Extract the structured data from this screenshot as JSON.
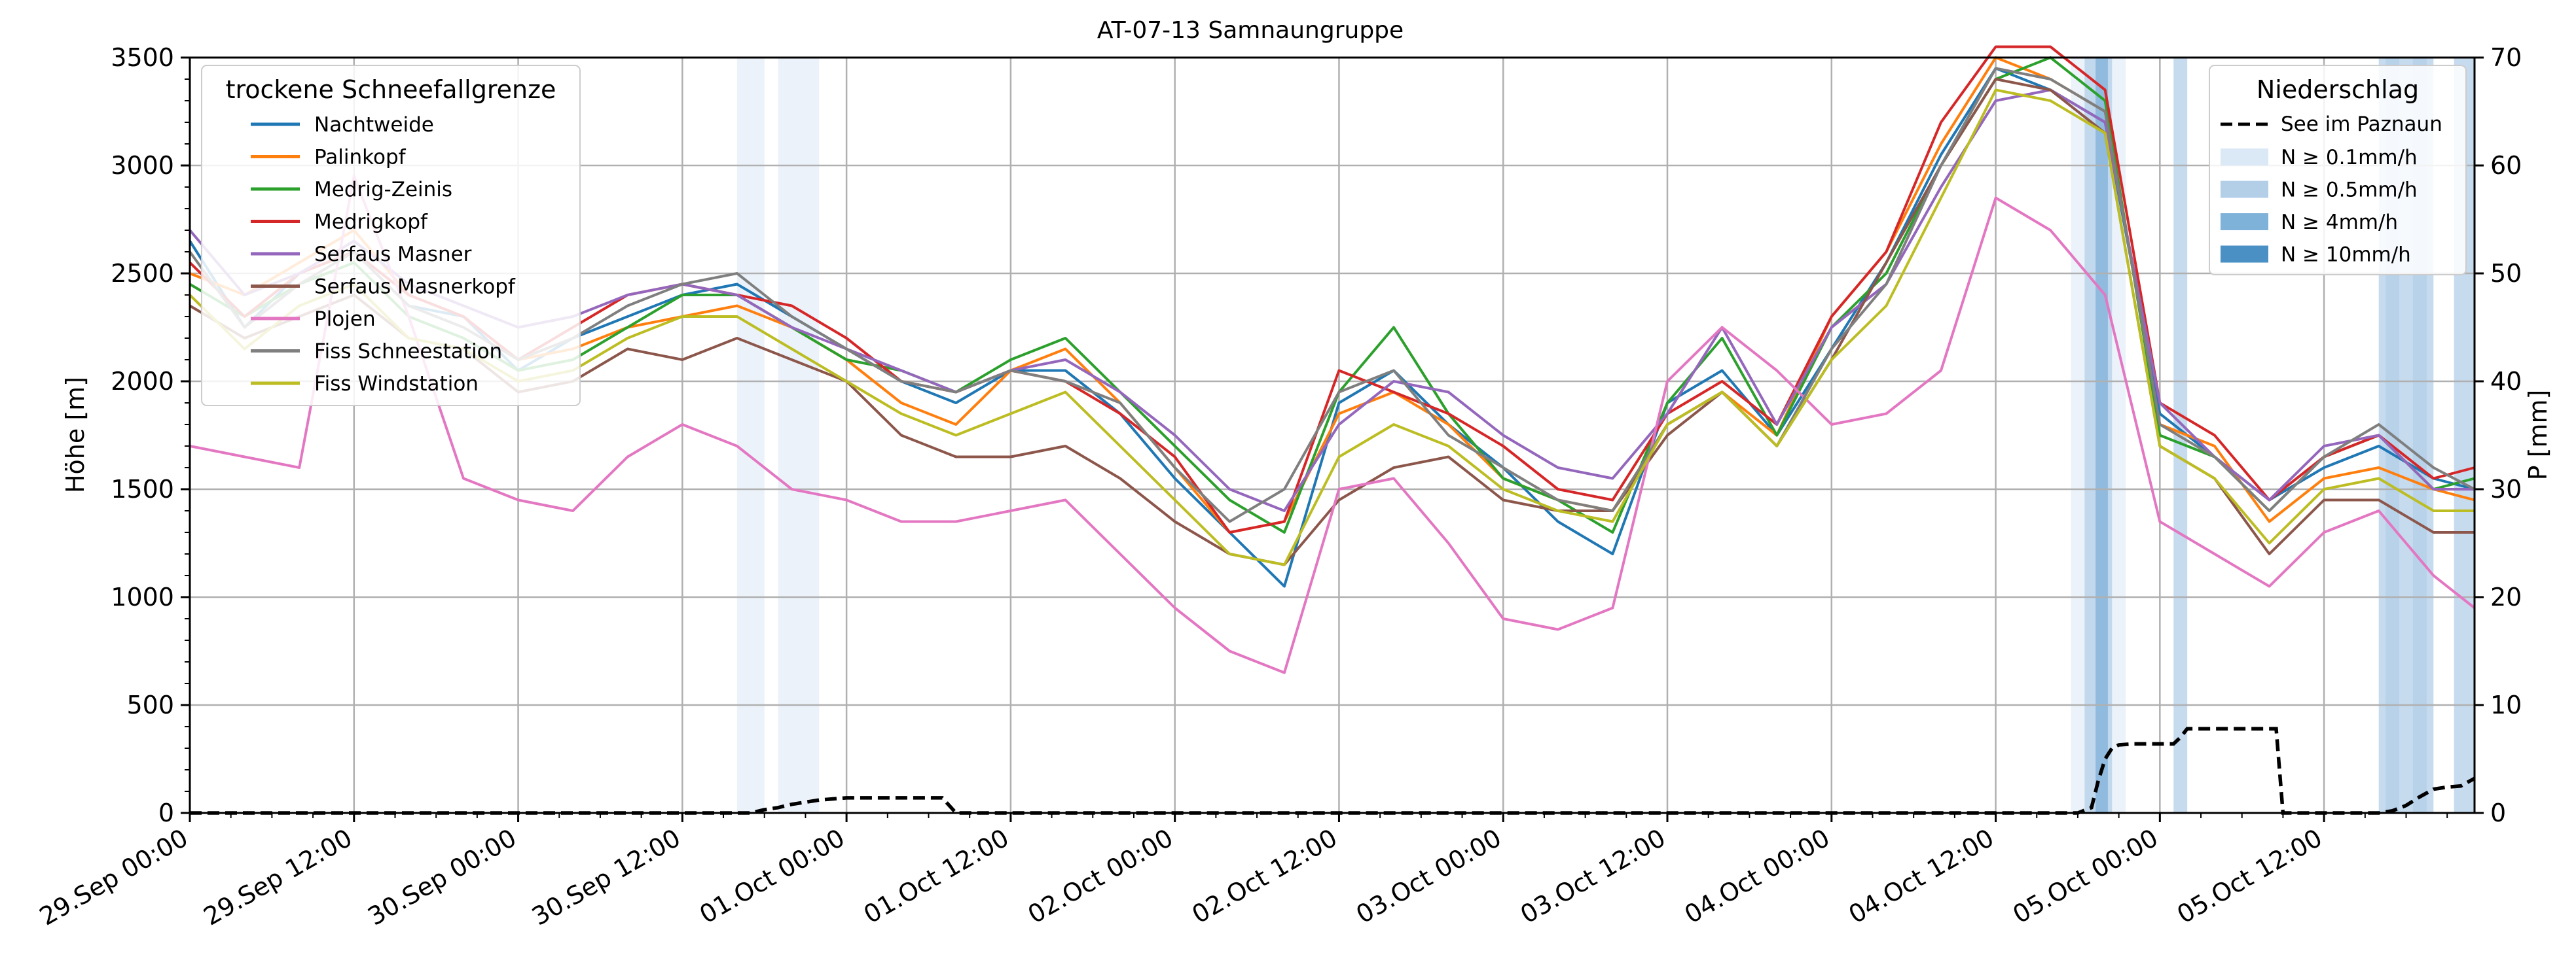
{
  "chart_data": {
    "type": "line",
    "title": "AT-07-13 Samnaungruppe",
    "ylabel": "Höhe [m]",
    "ylabel_right": "P [mm]",
    "ylim": [
      0,
      3500
    ],
    "ylim_right": [
      0,
      70
    ],
    "yticks": [
      0,
      500,
      1000,
      1500,
      2000,
      2500,
      3000,
      3500
    ],
    "yticks_right": [
      0,
      10,
      20,
      30,
      40,
      50,
      60,
      70
    ],
    "grid": true,
    "x_range_hours": [
      0,
      167
    ],
    "x_ticks": [
      {
        "hour": 0,
        "label": "29.Sep 00:00"
      },
      {
        "hour": 12,
        "label": "29.Sep 12:00"
      },
      {
        "hour": 24,
        "label": "30.Sep 00:00"
      },
      {
        "hour": 36,
        "label": "30.Sep 12:00"
      },
      {
        "hour": 48,
        "label": "01.Oct 00:00"
      },
      {
        "hour": 60,
        "label": "01.Oct 12:00"
      },
      {
        "hour": 72,
        "label": "02.Oct 00:00"
      },
      {
        "hour": 84,
        "label": "02.Oct 12:00"
      },
      {
        "hour": 96,
        "label": "03.Oct 00:00"
      },
      {
        "hour": 108,
        "label": "03.Oct 12:00"
      },
      {
        "hour": 120,
        "label": "04.Oct 00:00"
      },
      {
        "hour": 132,
        "label": "04.Oct 12:00"
      },
      {
        "hour": 144,
        "label": "05.Oct 00:00"
      },
      {
        "hour": 156,
        "label": "05.Oct 12:00"
      }
    ],
    "legend_left": {
      "title": "trockene Schneefallgrenze",
      "placement": "upper-left"
    },
    "legend_right": {
      "title": "Niederschlag",
      "placement": "upper-right",
      "line_entry": "See im Paznaun",
      "band_entries": [
        {
          "label": "N ≥ 0.1mm/h",
          "color": "#dbe8f5"
        },
        {
          "label": "N ≥ 0.5mm/h",
          "color": "#b3cfe8"
        },
        {
          "label": "N ≥ 4mm/h",
          "color": "#7fb2d8"
        },
        {
          "label": "N ≥ 10mm/h",
          "color": "#4a90c4"
        }
      ]
    },
    "precip_bands": [
      {
        "start": 40.0,
        "end": 42.0,
        "level": 0
      },
      {
        "start": 43.0,
        "end": 46.0,
        "level": 0
      },
      {
        "start": 137.5,
        "end": 141.5,
        "level": 0
      },
      {
        "start": 138.5,
        "end": 140.5,
        "level": 1
      },
      {
        "start": 139.3,
        "end": 140.2,
        "level": 2
      },
      {
        "start": 145.0,
        "end": 146.0,
        "level": 1
      },
      {
        "start": 160.0,
        "end": 164.0,
        "level": 1
      },
      {
        "start": 160.5,
        "end": 161.5,
        "level": 1
      },
      {
        "start": 162.5,
        "end": 163.5,
        "level": 1
      },
      {
        "start": 165.5,
        "end": 167.0,
        "level": 1
      }
    ],
    "cumulative_precip": {
      "name": "See im Paznaun",
      "color": "#000000",
      "x": [
        0,
        41,
        42,
        43,
        44,
        45,
        46,
        47,
        48,
        49,
        50,
        51,
        52,
        53,
        54,
        55,
        56,
        138,
        139,
        139.5,
        140,
        140.5,
        141,
        142,
        143,
        144,
        145,
        145.5,
        146,
        147,
        148,
        149,
        150,
        151,
        152,
        152.5,
        153,
        160,
        161,
        162,
        163,
        164,
        165,
        166,
        167
      ],
      "y": [
        0,
        0,
        0.3,
        0.5,
        0.8,
        1.0,
        1.2,
        1.3,
        1.4,
        1.4,
        1.4,
        1.4,
        1.4,
        1.4,
        1.4,
        1.4,
        0,
        0,
        0.5,
        3,
        5,
        6,
        6.3,
        6.4,
        6.4,
        6.4,
        6.4,
        7,
        7.8,
        7.8,
        7.8,
        7.8,
        7.8,
        7.8,
        7.8,
        7.8,
        0,
        0,
        0.2,
        0.7,
        1.5,
        2.2,
        2.4,
        2.5,
        3.2
      ]
    },
    "x_hours": [
      0,
      4,
      8,
      12,
      16,
      20,
      24,
      28,
      32,
      36,
      40,
      44,
      48,
      52,
      56,
      60,
      64,
      68,
      72,
      76,
      80,
      84,
      88,
      92,
      96,
      100,
      104,
      108,
      112,
      116,
      120,
      124,
      128,
      132,
      136,
      140,
      144,
      148,
      152,
      156,
      160,
      164,
      167
    ],
    "series": [
      {
        "name": "Nachtweide",
        "color": "#1f77b4",
        "values": [
          2650,
          2250,
          2500,
          2600,
          2350,
          2300,
          2050,
          2200,
          2300,
          2400,
          2450,
          2300,
          2150,
          2000,
          1900,
          2050,
          2050,
          1850,
          1550,
          1300,
          1050,
          1900,
          2050,
          1800,
          1600,
          1350,
          1200,
          1900,
          2050,
          1750,
          2150,
          2550,
          3050,
          3450,
          3350,
          3200,
          1850,
          1650,
          1450,
          1600,
          1700,
          1550,
          1500
        ]
      },
      {
        "name": "Palinkopf",
        "color": "#ff7f0e",
        "values": [
          2500,
          2400,
          2550,
          2700,
          2400,
          2300,
          2100,
          2150,
          2250,
          2300,
          2350,
          2250,
          2100,
          1900,
          1800,
          2050,
          2150,
          1900,
          1600,
          1300,
          1350,
          1850,
          1950,
          1800,
          1550,
          1450,
          1400,
          1800,
          1950,
          1750,
          2300,
          2600,
          3100,
          3500,
          3400,
          3250,
          1800,
          1700,
          1350,
          1550,
          1600,
          1500,
          1450
        ]
      },
      {
        "name": "Medrig-Zeinis",
        "color": "#2ca02c",
        "values": [
          2450,
          2300,
          2450,
          2550,
          2300,
          2200,
          2050,
          2100,
          2250,
          2400,
          2400,
          2250,
          2100,
          2050,
          1950,
          2100,
          2200,
          1950,
          1700,
          1450,
          1300,
          1950,
          2250,
          1850,
          1550,
          1450,
          1300,
          1900,
          2200,
          1750,
          2250,
          2500,
          3000,
          3400,
          3500,
          3300,
          1750,
          1650,
          1400,
          1650,
          1750,
          1500,
          1550
        ]
      },
      {
        "name": "Medrigkopf",
        "color": "#d62728",
        "values": [
          2550,
          2300,
          2500,
          2600,
          2400,
          2300,
          2100,
          2250,
          2400,
          2450,
          2400,
          2350,
          2200,
          2000,
          1950,
          2050,
          2000,
          1850,
          1650,
          1300,
          1350,
          2050,
          1950,
          1850,
          1700,
          1500,
          1450,
          1850,
          2000,
          1800,
          2300,
          2600,
          3200,
          3550,
          3550,
          3350,
          1900,
          1750,
          1450,
          1650,
          1750,
          1550,
          1600
        ]
      },
      {
        "name": "Serfaus Masner",
        "color": "#9467bd",
        "values": [
          2700,
          2400,
          2500,
          2650,
          2450,
          2350,
          2250,
          2300,
          2400,
          2450,
          2400,
          2250,
          2150,
          2050,
          1950,
          2050,
          2100,
          1950,
          1750,
          1500,
          1400,
          1800,
          2000,
          1950,
          1750,
          1600,
          1550,
          1850,
          2250,
          1800,
          2250,
          2450,
          2900,
          3300,
          3350,
          3200,
          1900,
          1650,
          1450,
          1700,
          1750,
          1500,
          1500
        ]
      },
      {
        "name": "Serfaus Masnerkopf",
        "color": "#8c564b",
        "values": [
          2350,
          2200,
          2300,
          2400,
          2200,
          2150,
          1950,
          2000,
          2150,
          2100,
          2200,
          2100,
          2000,
          1750,
          1650,
          1650,
          1700,
          1550,
          1350,
          1200,
          1150,
          1450,
          1600,
          1650,
          1450,
          1400,
          1400,
          1750,
          1950,
          1700,
          2100,
          2550,
          3000,
          3400,
          3350,
          3150,
          1700,
          1550,
          1200,
          1450,
          1450,
          1300,
          1300
        ]
      },
      {
        "name": "Plojen",
        "color": "#e377c2",
        "values": [
          1700,
          1650,
          1600,
          2950,
          2300,
          1550,
          1450,
          1400,
          1650,
          1800,
          1700,
          1500,
          1450,
          1350,
          1350,
          1400,
          1450,
          1200,
          950,
          750,
          650,
          1500,
          1550,
          1250,
          900,
          850,
          950,
          2000,
          2250,
          2050,
          1800,
          1850,
          2050,
          2850,
          2700,
          2400,
          1350,
          1200,
          1050,
          1300,
          1400,
          1100,
          950
        ]
      },
      {
        "name": "Fiss Schneestation",
        "color": "#7f7f7f",
        "values": [
          2600,
          2250,
          2450,
          2600,
          2350,
          2250,
          2100,
          2200,
          2350,
          2450,
          2500,
          2300,
          2150,
          2000,
          1950,
          2050,
          2000,
          1900,
          1600,
          1350,
          1500,
          1950,
          2050,
          1750,
          1600,
          1450,
          1400,
          1800,
          1950,
          1700,
          2150,
          2450,
          3000,
          3450,
          3400,
          3250,
          1800,
          1650,
          1400,
          1650,
          1800,
          1600,
          1500
        ]
      },
      {
        "name": "Fiss Windstation",
        "color": "#bcbd22",
        "values": [
          2400,
          2150,
          2350,
          2450,
          2200,
          2150,
          2000,
          2050,
          2200,
          2300,
          2300,
          2150,
          2000,
          1850,
          1750,
          1850,
          1950,
          1700,
          1450,
          1200,
          1150,
          1650,
          1800,
          1700,
          1500,
          1400,
          1350,
          1800,
          1950,
          1700,
          2100,
          2350,
          2850,
          3350,
          3300,
          3150,
          1700,
          1550,
          1250,
          1500,
          1550,
          1400,
          1400
        ]
      }
    ]
  }
}
